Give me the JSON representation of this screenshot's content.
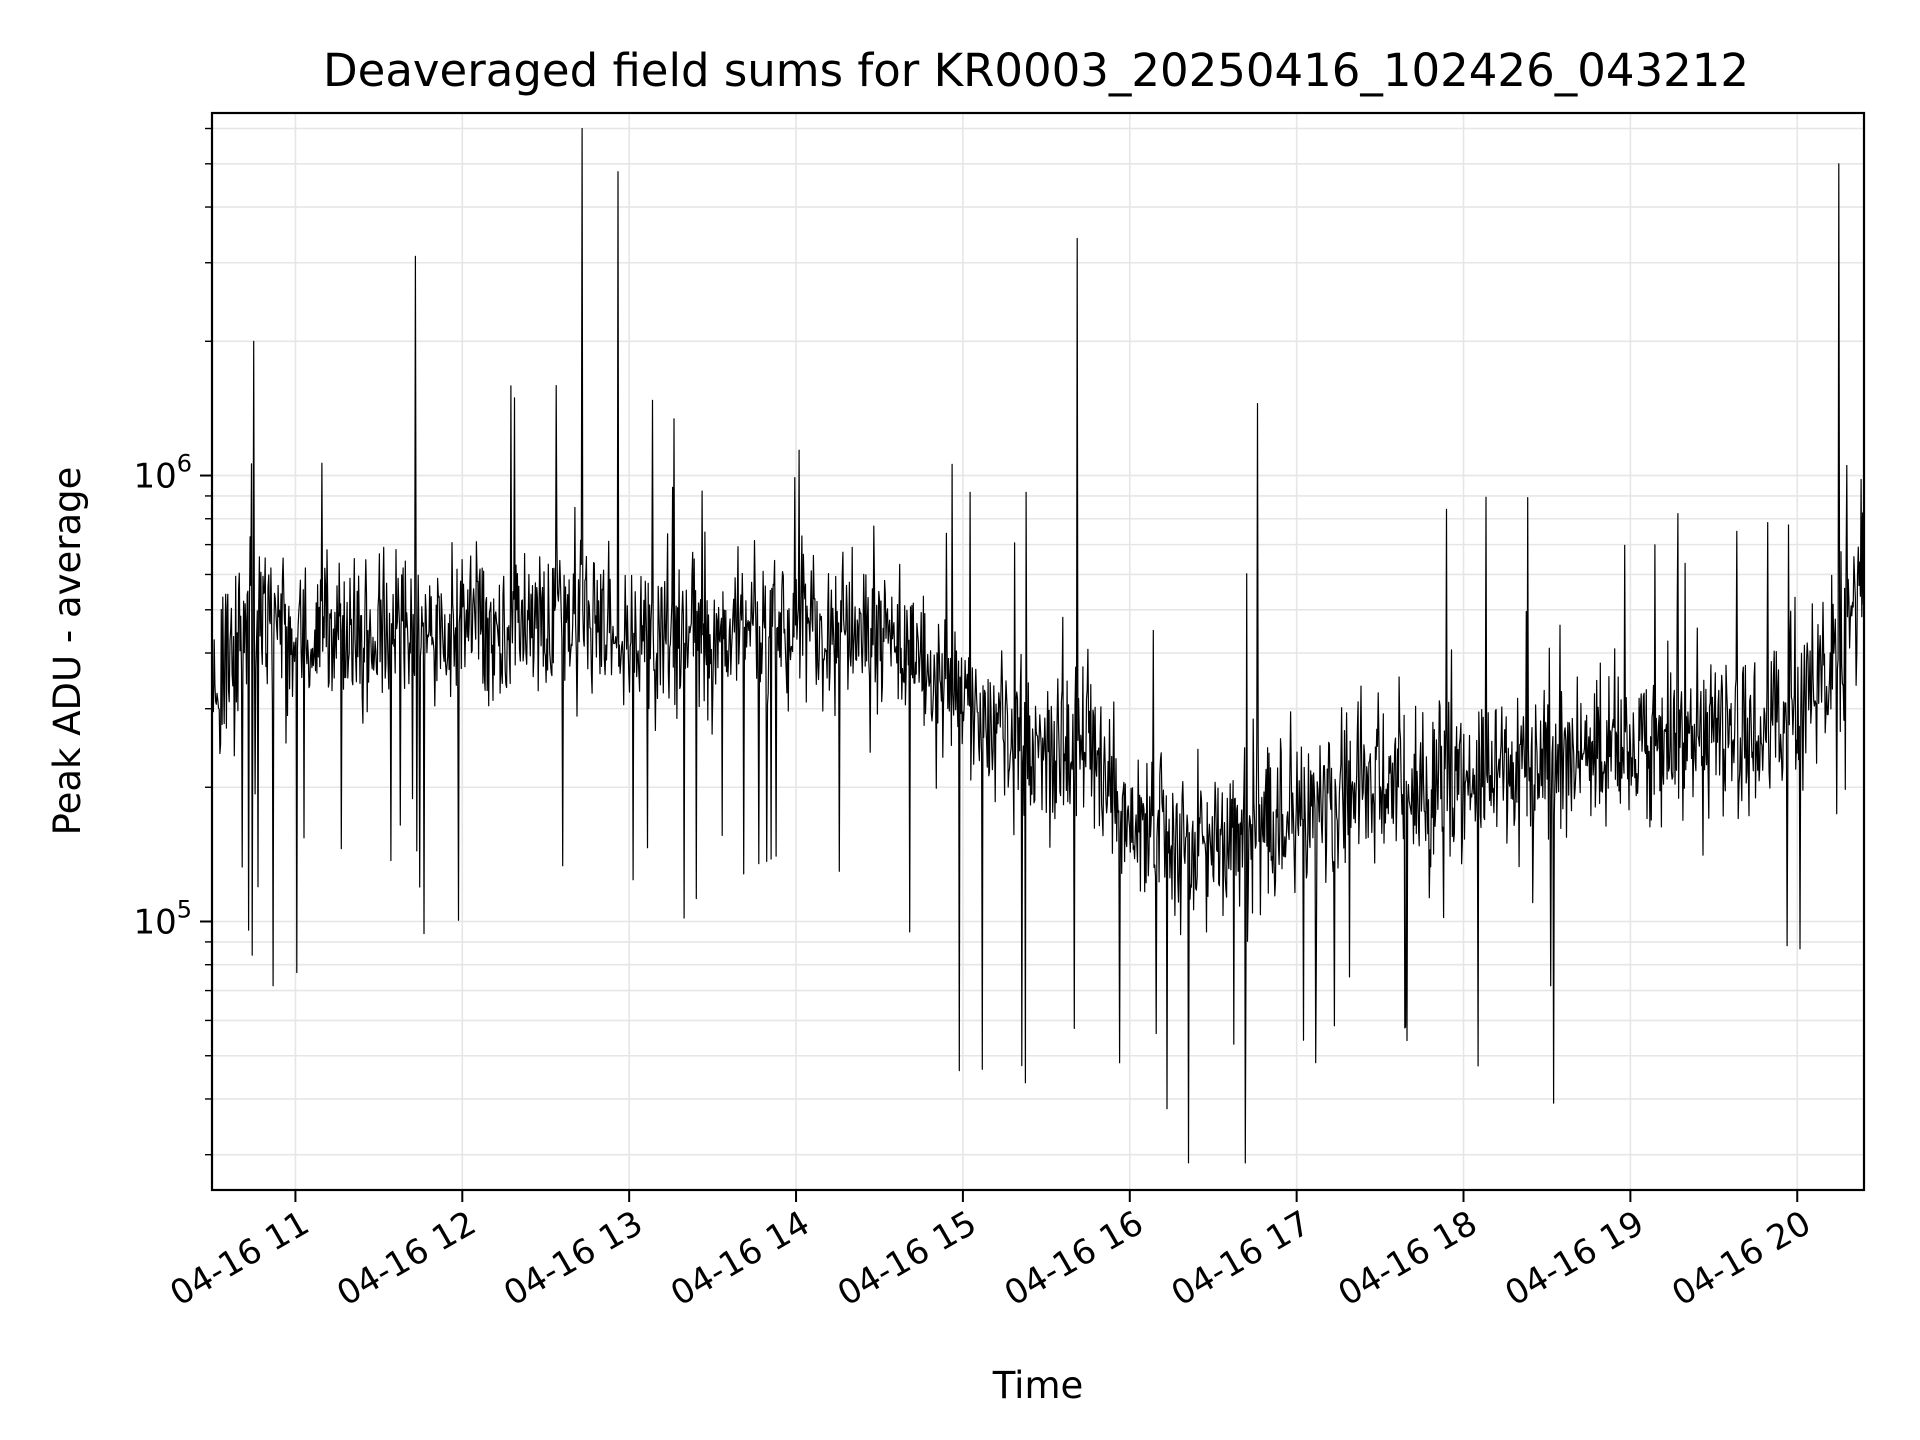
{
  "chart_data": {
    "type": "line",
    "title": "Deaveraged field sums for KR0003_20250416_102426_043212",
    "xlabel": "Time",
    "ylabel": "Peak ADU - average",
    "y_scale": "log",
    "xlim": [
      "04-16 10:30",
      "04-16 20:24"
    ],
    "ylim": [
      25000,
      6500000
    ],
    "grid": true,
    "x_ticks": [
      "04-16 11",
      "04-16 12",
      "04-16 13",
      "04-16 14",
      "04-16 15",
      "04-16 16",
      "04-16 17",
      "04-16 18",
      "04-16 19",
      "04-16 20"
    ],
    "y_ticks": [
      {
        "base": "10",
        "exp": "5",
        "value": 100000
      },
      {
        "base": "10",
        "exp": "6",
        "value": 1000000
      }
    ],
    "series": [
      {
        "color": "#000000",
        "x": [
          "04-16 10:30",
          "04-16 10:45",
          "04-16 11:00",
          "04-16 11:15",
          "04-16 11:30",
          "04-16 11:45",
          "04-16 12:00",
          "04-16 12:15",
          "04-16 12:30",
          "04-16 12:45",
          "04-16 13:00",
          "04-16 13:15",
          "04-16 13:30",
          "04-16 13:45",
          "04-16 14:00",
          "04-16 14:15",
          "04-16 14:30",
          "04-16 14:45",
          "04-16 15:00",
          "04-16 15:15",
          "04-16 15:30",
          "04-16 15:45",
          "04-16 16:00",
          "04-16 16:15",
          "04-16 16:30",
          "04-16 16:45",
          "04-16 17:00",
          "04-16 17:15",
          "04-16 17:30",
          "04-16 17:45",
          "04-16 18:00",
          "04-16 18:15",
          "04-16 18:30",
          "04-16 18:45",
          "04-16 19:00",
          "04-16 19:15",
          "04-16 19:30",
          "04-16 19:45",
          "04-16 20:00",
          "04-16 20:15",
          "04-16 20:24"
        ],
        "y": [
          320000,
          480000,
          420000,
          430000,
          440000,
          450000,
          460000,
          450000,
          470000,
          480000,
          460000,
          440000,
          420000,
          450000,
          470000,
          460000,
          440000,
          380000,
          300000,
          260000,
          240000,
          250000,
          170000,
          160000,
          150000,
          160000,
          180000,
          190000,
          200000,
          200000,
          210000,
          220000,
          230000,
          240000,
          240000,
          250000,
          260000,
          250000,
          300000,
          420000,
          600000
        ]
      }
    ],
    "annotations": [
      {
        "x": "04-16 10:45",
        "y": 2000000
      },
      {
        "x": "04-16 11:43",
        "y": 3100000
      },
      {
        "x": "04-16 12:43",
        "y": 6000000
      },
      {
        "x": "04-16 12:56",
        "y": 4800000
      },
      {
        "x": "04-16 15:41",
        "y": 3400000
      },
      {
        "x": "04-16 16:46",
        "y": 1450000
      },
      {
        "x": "04-16 20:15",
        "y": 5000000
      }
    ]
  }
}
